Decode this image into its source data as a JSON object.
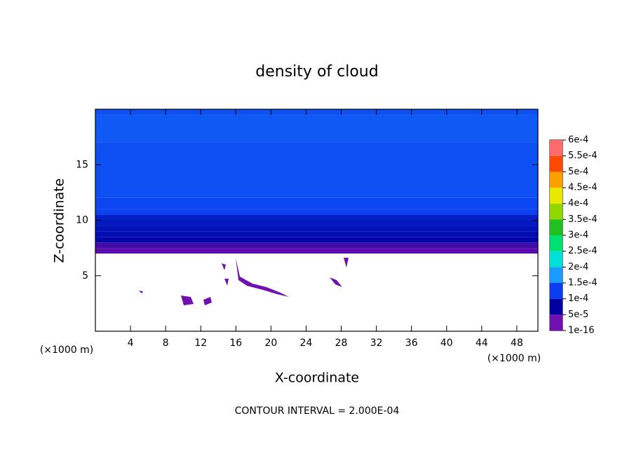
{
  "chart_data": {
    "type": "contour",
    "title": "density of cloud",
    "x_label": "X-coordinate",
    "y_label": "Z-coordinate",
    "x_unit": "(×1000 m)",
    "footnote": "CONTOUR INTERVAL = 2.000E-04",
    "xlim": [
      0,
      50.4
    ],
    "ylim": [
      0,
      20
    ],
    "xticks": [
      4,
      8,
      12,
      16,
      20,
      24,
      28,
      32,
      36,
      40,
      44,
      48
    ],
    "yticks": [
      5,
      10,
      15
    ],
    "z_bounds": [
      7,
      7.5,
      8,
      8.5,
      9,
      9.5,
      10,
      10.5,
      11,
      12,
      17,
      19.5,
      20
    ],
    "values": [
      2e-05,
      4e-05,
      6e-05,
      7e-05,
      8e-05,
      9e-05,
      0.0001,
      0.000105,
      0.00011,
      0.00012,
      0.00013,
      0.00012
    ],
    "colorbar_ticks": [
      {
        "value": 1e-16,
        "label": "1e-16"
      },
      {
        "value": 5e-05,
        "label": "5e-5"
      },
      {
        "value": 0.0001,
        "label": "1e-4"
      },
      {
        "value": 0.00015,
        "label": "1.5e-4"
      },
      {
        "value": 0.0002,
        "label": "2e-4"
      },
      {
        "value": 0.00025,
        "label": "2.5e-4"
      },
      {
        "value": 0.0003,
        "label": "3e-4"
      },
      {
        "value": 0.00035,
        "label": "3.5e-4"
      },
      {
        "value": 0.0004,
        "label": "4e-4"
      },
      {
        "value": 0.00045,
        "label": "4.5e-4"
      },
      {
        "value": 0.0005,
        "label": "5e-4"
      },
      {
        "value": 0.00055,
        "label": "5.5e-4"
      },
      {
        "value": 0.0006,
        "label": "6e-4"
      }
    ],
    "colors": [
      "#7010b0",
      "#0000a0",
      "#0a3cf0",
      "#1a9cff",
      "#00e0d8",
      "#00e070",
      "#20c020",
      "#90d800",
      "#e8e800",
      "#ffa000",
      "#ff4800",
      "#ff6a6a"
    ]
  }
}
